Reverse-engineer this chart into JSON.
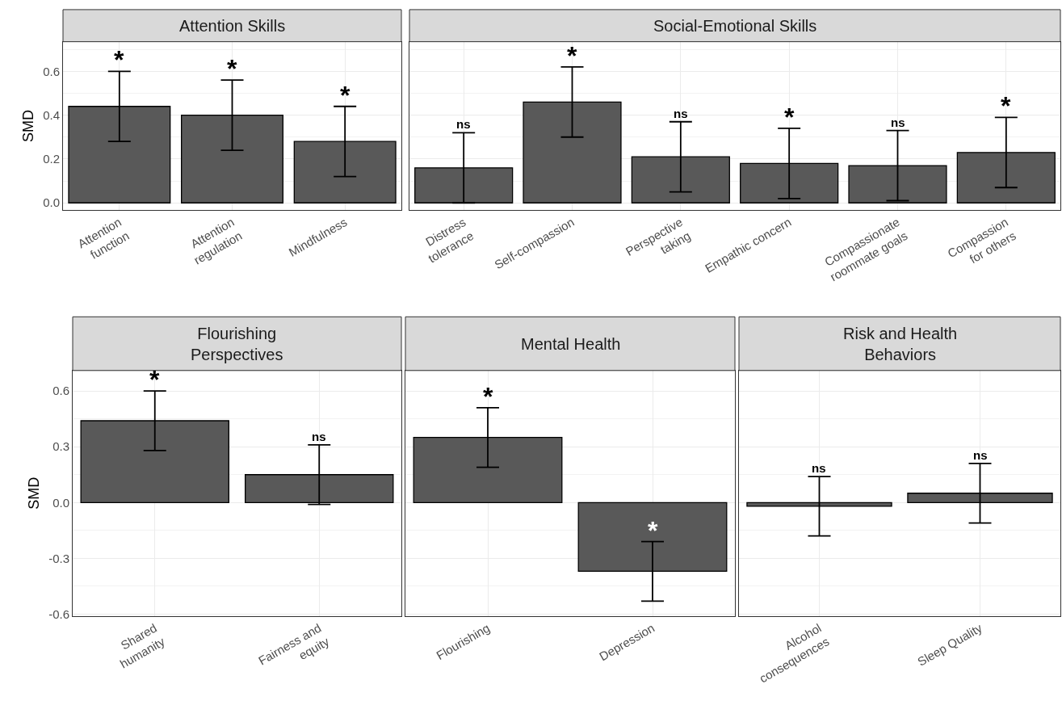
{
  "chart_data": [
    {
      "type": "bar",
      "title": "Attention Skills",
      "ylabel": "SMD",
      "categories": [
        "Attention\nfunction",
        "Attention\nregulation",
        "Mindfulness"
      ],
      "values": [
        0.44,
        0.4,
        0.28
      ],
      "errors": [
        [
          0.28,
          0.6
        ],
        [
          0.24,
          0.56
        ],
        [
          0.12,
          0.44
        ]
      ],
      "color": "#595959",
      "ylim": [
        -0.033,
        0.735
      ],
      "yticks": [
        {
          "value": 0.0,
          "label": "0.0"
        },
        {
          "value": 0.2,
          "label": "0.2"
        },
        {
          "value": 0.4,
          "label": "0.4"
        },
        {
          "value": 0.6,
          "label": "0.6"
        }
      ],
      "grid": true,
      "annotations": [
        {
          "text": "*",
          "x": "Attention\nfunction",
          "y": 0.6
        },
        {
          "text": "*",
          "x": "Attention\nregulation",
          "y": 0.56
        },
        {
          "text": "*",
          "x": "Mindfulness",
          "y": 0.44
        }
      ]
    },
    {
      "type": "bar",
      "title": "Social-Emotional Skills",
      "categories": [
        "Distress\ntolerance",
        "Self-compassion",
        "Perspective\ntaking",
        "Empathic concern",
        "Compassionate\nroommate goals",
        "Compassion\nfor others"
      ],
      "values": [
        0.16,
        0.46,
        0.21,
        0.18,
        0.17,
        0.23
      ],
      "errors": [
        [
          0.0,
          0.32
        ],
        [
          0.3,
          0.62
        ],
        [
          0.05,
          0.37
        ],
        [
          0.02,
          0.34
        ],
        [
          0.01,
          0.33
        ],
        [
          0.07,
          0.39
        ]
      ],
      "color": "#595959",
      "ylim": [
        -0.033,
        0.735
      ],
      "yticks": [
        0,
        0.2,
        0.4,
        0.6
      ],
      "grid": true,
      "tick_labels": "x",
      "annotations": [
        {
          "text": "ns",
          "x": "Distress\ntolerance",
          "y": 0.32
        },
        {
          "text": "*",
          "x": "Self-compassion",
          "y": 0.62
        },
        {
          "text": "ns",
          "x": "Perspective\ntaking",
          "y": 0.37
        },
        {
          "text": "*",
          "x": "Empathic concern",
          "y": 0.34
        },
        {
          "text": "ns",
          "x": "Compassionate\nroommate goals",
          "y": 0.33
        },
        {
          "text": "*",
          "x": "Compassion\nfor others",
          "y": 0.39
        }
      ]
    },
    {
      "type": "bar",
      "title": "Flourishing\nPerspectives",
      "ylabel": "SMD",
      "categories": [
        "Shared\nhumanity",
        "Fairness and\nequity"
      ],
      "values": [
        0.44,
        0.15
      ],
      "errors": [
        [
          0.28,
          0.6
        ],
        [
          -0.01,
          0.31
        ]
      ],
      "color": "#595959",
      "ylim": [
        -0.61,
        0.71
      ],
      "yticks": [
        {
          "value": -0.6,
          "label": "-0.6"
        },
        {
          "value": -0.3,
          "label": "-0.3"
        },
        {
          "value": 0.0,
          "label": "0.0"
        },
        {
          "value": 0.3,
          "label": "0.3"
        },
        {
          "value": 0.6,
          "label": "0.6"
        }
      ],
      "grid": true,
      "annotations": [
        {
          "text": "*",
          "x": "Shared\nhumanity",
          "y": 0.6
        },
        {
          "text": "ns",
          "x": "Fairness and\nequity",
          "y": 0.31
        }
      ]
    },
    {
      "type": "bar",
      "title": "Mental Health",
      "categories": [
        "Flourishing",
        "Depression"
      ],
      "values": [
        0.35,
        -0.37
      ],
      "errors": [
        [
          0.19,
          0.51
        ],
        [
          -0.53,
          -0.21
        ]
      ],
      "color": "#595959",
      "ylim": [
        -0.61,
        0.71
      ],
      "yticks": [
        -0.6,
        -0.3,
        0,
        0.3,
        0.6
      ],
      "grid": true,
      "tick_labels": "x",
      "annotations": [
        {
          "text": "*",
          "x": "Flourishing",
          "y": 0.51
        },
        {
          "text": "*",
          "x": "Depression",
          "y": -0.21
        }
      ]
    },
    {
      "type": "bar",
      "title": "Risk and Health\nBehaviors",
      "categories": [
        "Alcohol\nconsequences",
        "Sleep Quality"
      ],
      "values": [
        -0.02,
        0.05
      ],
      "errors": [
        [
          -0.18,
          0.14
        ],
        [
          -0.11,
          0.21
        ]
      ],
      "color": "#595959",
      "ylim": [
        -0.61,
        0.71
      ],
      "yticks": [
        -0.6,
        -0.3,
        0,
        0.3,
        0.6
      ],
      "grid": true,
      "tick_labels": "x",
      "annotations": [
        {
          "text": "ns",
          "x": "Alcohol\nconsequences",
          "y": 0.14
        },
        {
          "text": "ns",
          "x": "Sleep Quality",
          "y": 0.21
        }
      ]
    }
  ]
}
